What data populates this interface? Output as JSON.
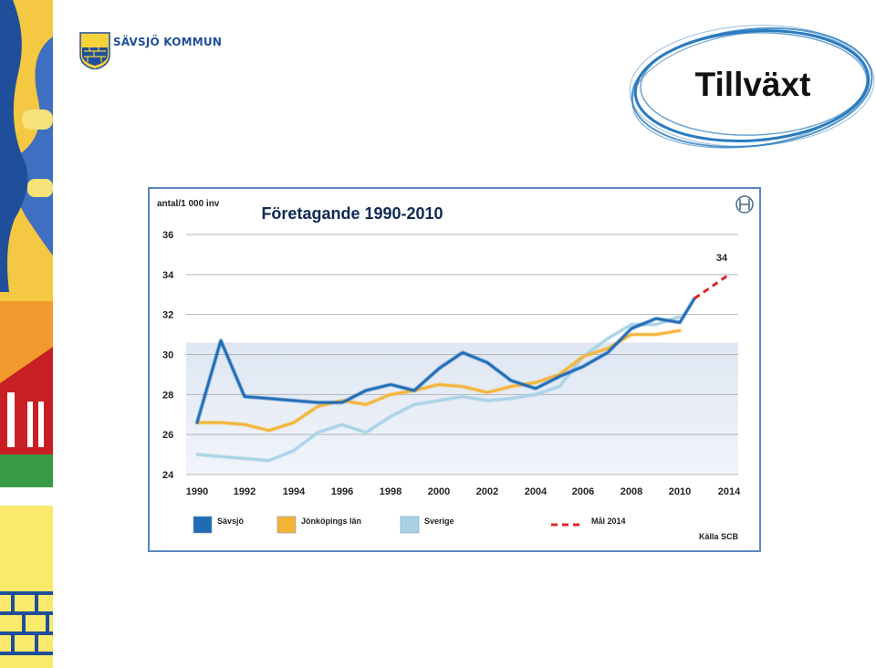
{
  "header": {
    "logo_text": "SÄVSJÖ KOMMUN",
    "slide_title": "Tillväxt"
  },
  "chart_data": {
    "type": "line",
    "title": "Företagande 1990-2010",
    "ylabel": "antal/1 000 inv",
    "xlabel": "",
    "ylim": [
      24,
      36
    ],
    "yticks": [
      "24",
      "26",
      "28",
      "30",
      "32",
      "34",
      "36"
    ],
    "xticks": [
      "1990",
      "1992",
      "1994",
      "1996",
      "1998",
      "2000",
      "2002",
      "2004",
      "2006",
      "2008",
      "2010",
      "2014"
    ],
    "grid": true,
    "legend_position": "bottom",
    "source": "Källa SCB",
    "series": [
      {
        "name": "Sävsjö",
        "color": "#1f6bb5",
        "points": [
          [
            1990,
            26.6
          ],
          [
            1991,
            30.7
          ],
          [
            1992,
            27.9
          ],
          [
            1993,
            27.8
          ],
          [
            1994,
            27.7
          ],
          [
            1995,
            27.6
          ],
          [
            1996,
            27.6
          ],
          [
            1997,
            28.2
          ],
          [
            1998,
            28.5
          ],
          [
            1999,
            28.2
          ],
          [
            2000,
            29.3
          ],
          [
            2001,
            30.1
          ],
          [
            2002,
            29.6
          ],
          [
            2003,
            28.7
          ],
          [
            2004,
            28.3
          ],
          [
            2005,
            28.9
          ],
          [
            2006,
            29.4
          ],
          [
            2007,
            30.1
          ],
          [
            2008,
            31.3
          ],
          [
            2009,
            31.8
          ],
          [
            2010,
            31.6
          ],
          [
            2011,
            32.8
          ]
        ]
      },
      {
        "name": "Jönköpings län",
        "color": "#f5b335",
        "points": [
          [
            1990,
            26.6
          ],
          [
            1991,
            26.6
          ],
          [
            1992,
            26.5
          ],
          [
            1993,
            26.2
          ],
          [
            1994,
            26.6
          ],
          [
            1995,
            27.4
          ],
          [
            1996,
            27.7
          ],
          [
            1997,
            27.5
          ],
          [
            1998,
            28.0
          ],
          [
            1999,
            28.2
          ],
          [
            2000,
            28.5
          ],
          [
            2001,
            28.4
          ],
          [
            2002,
            28.1
          ],
          [
            2003,
            28.4
          ],
          [
            2004,
            28.6
          ],
          [
            2005,
            29.0
          ],
          [
            2006,
            29.9
          ],
          [
            2007,
            30.3
          ],
          [
            2008,
            31.0
          ],
          [
            2009,
            31.0
          ],
          [
            2010,
            31.2
          ]
        ]
      },
      {
        "name": "Sverige",
        "color": "#a7d2e6",
        "points": [
          [
            1990,
            25.0
          ],
          [
            1991,
            24.9
          ],
          [
            1992,
            24.8
          ],
          [
            1993,
            24.7
          ],
          [
            1994,
            25.2
          ],
          [
            1995,
            26.1
          ],
          [
            1996,
            26.5
          ],
          [
            1997,
            26.1
          ],
          [
            1998,
            26.9
          ],
          [
            1999,
            27.5
          ],
          [
            2000,
            27.7
          ],
          [
            2001,
            27.9
          ],
          [
            2002,
            27.7
          ],
          [
            2003,
            27.8
          ],
          [
            2004,
            28.0
          ],
          [
            2005,
            28.4
          ],
          [
            2006,
            29.9
          ],
          [
            2007,
            30.8
          ],
          [
            2008,
            31.5
          ],
          [
            2009,
            31.5
          ],
          [
            2010,
            31.9
          ]
        ]
      },
      {
        "name": "Mål 2014",
        "color": "#e2262b",
        "dashed": true,
        "points": [
          [
            2011,
            32.8
          ],
          [
            2014,
            34.0
          ]
        ]
      }
    ],
    "annotations": [
      {
        "text": "34",
        "x": 2014,
        "y": 34
      }
    ]
  }
}
